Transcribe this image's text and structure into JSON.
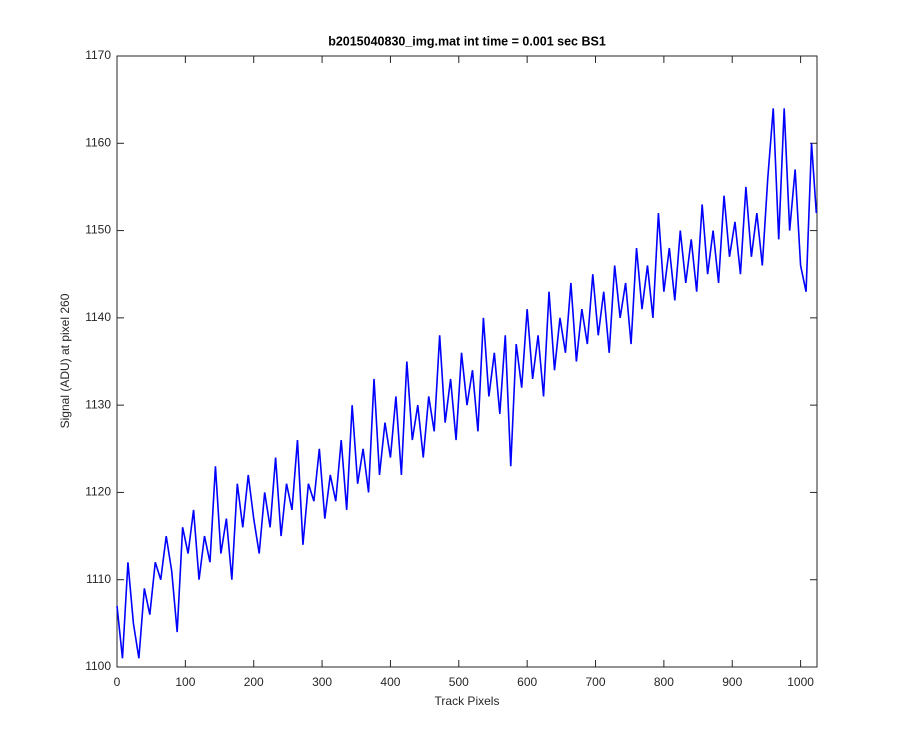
{
  "chart_data": {
    "type": "line",
    "title": "b2015040830_img.mat int time = 0.001 sec   BS1",
    "x_label": "Track Pixels",
    "y_label": "Signal (ADU) at pixel 260",
    "xlim": [
      0,
      1024
    ],
    "ylim": [
      1100,
      1170
    ],
    "xticks": [
      0,
      100,
      200,
      300,
      400,
      500,
      600,
      700,
      800,
      900,
      1000
    ],
    "yticks": [
      1100,
      1110,
      1120,
      1130,
      1140,
      1150,
      1160,
      1170
    ],
    "grid": false,
    "x": [
      0,
      8,
      16,
      24,
      32,
      40,
      48,
      56,
      64,
      72,
      80,
      88,
      96,
      104,
      112,
      120,
      128,
      136,
      144,
      152,
      160,
      168,
      176,
      184,
      192,
      200,
      208,
      216,
      224,
      232,
      240,
      248,
      256,
      264,
      272,
      280,
      288,
      296,
      304,
      312,
      320,
      328,
      336,
      344,
      352,
      360,
      368,
      376,
      384,
      392,
      400,
      408,
      416,
      424,
      432,
      440,
      448,
      456,
      464,
      472,
      480,
      488,
      496,
      504,
      512,
      520,
      528,
      536,
      544,
      552,
      560,
      568,
      576,
      584,
      592,
      600,
      608,
      616,
      624,
      632,
      640,
      648,
      656,
      664,
      672,
      680,
      688,
      696,
      704,
      712,
      720,
      728,
      736,
      744,
      752,
      760,
      768,
      776,
      784,
      792,
      800,
      808,
      816,
      824,
      832,
      840,
      848,
      856,
      864,
      872,
      880,
      888,
      896,
      904,
      912,
      920,
      928,
      936,
      944,
      952,
      960,
      968,
      976,
      984,
      992,
      1000,
      1008,
      1016,
      1023
    ],
    "series": [
      {
        "name": "signal",
        "color": "#0000ff",
        "values": [
          1107,
          1101,
          1112,
          1105,
          1101,
          1109,
          1106,
          1112,
          1110,
          1115,
          1111,
          1104,
          1116,
          1113,
          1118,
          1110,
          1115,
          1112,
          1123,
          1113,
          1117,
          1110,
          1121,
          1116,
          1122,
          1117,
          1113,
          1120,
          1116,
          1124,
          1115,
          1121,
          1118,
          1126,
          1114,
          1121,
          1119,
          1125,
          1117,
          1122,
          1119,
          1126,
          1118,
          1130,
          1121,
          1125,
          1120,
          1133,
          1122,
          1128,
          1124,
          1131,
          1122,
          1135,
          1126,
          1130,
          1124,
          1131,
          1127,
          1138,
          1128,
          1133,
          1126,
          1136,
          1130,
          1134,
          1127,
          1140,
          1131,
          1136,
          1129,
          1138,
          1123,
          1137,
          1132,
          1141,
          1133,
          1138,
          1131,
          1143,
          1134,
          1140,
          1136,
          1144,
          1135,
          1141,
          1137,
          1145,
          1138,
          1143,
          1136,
          1146,
          1140,
          1144,
          1137,
          1148,
          1141,
          1146,
          1140,
          1152,
          1143,
          1148,
          1142,
          1150,
          1144,
          1149,
          1143,
          1153,
          1145,
          1150,
          1144,
          1154,
          1147,
          1151,
          1145,
          1155,
          1147,
          1152,
          1146,
          1156,
          1164,
          1149,
          1164,
          1150,
          1157,
          1146,
          1143,
          1160,
          1152
        ]
      }
    ]
  }
}
